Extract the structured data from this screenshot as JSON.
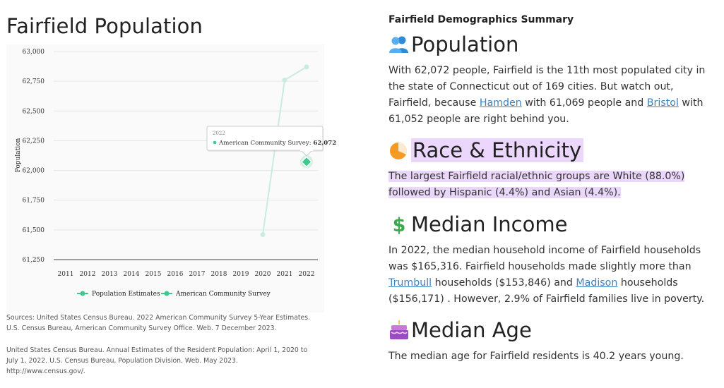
{
  "left": {
    "title": "Fairfield Population",
    "sources": [
      "Sources: United States Census Bureau. 2022 American Community Survey 5-Year Estimates. U.S. Census Bureau, American Community Survey Office. Web. 7 December 2023.",
      "United States Census Bureau. Annual Estimates of the Resident Population: April 1, 2020 to July 1, 2022. U.S. Census Bureau, Population Division. Web. May 2023. http://www.census.gov/."
    ]
  },
  "chart_data": {
    "type": "line",
    "title": "",
    "xlabel": "",
    "ylabel": "Population",
    "x": [
      "2011",
      "2012",
      "2013",
      "2014",
      "2015",
      "2016",
      "2017",
      "2018",
      "2019",
      "2020",
      "2021",
      "2022"
    ],
    "ylim": [
      61250,
      63000
    ],
    "yticks": [
      "63,000",
      "62,750",
      "62,500",
      "62,250",
      "62,000",
      "61,750",
      "61,500",
      "61,250"
    ],
    "series": [
      {
        "name": "Population Estimates",
        "color": "#c9ecdf",
        "points": [
          {
            "x": "2020",
            "y": 61460
          },
          {
            "x": "2021",
            "y": 62760
          },
          {
            "x": "2022",
            "y": 62870
          }
        ]
      },
      {
        "name": "American Community Survey",
        "color": "#3ec98e",
        "points": [
          {
            "x": "2022",
            "y": 62072
          }
        ]
      }
    ],
    "tooltip": {
      "year": "2022",
      "series": "American Community Survey",
      "value": "62,072"
    },
    "legend_position": "bottom"
  },
  "right": {
    "summary_title": "Fairfield Demographics Summary",
    "sections": [
      {
        "heading": "Population",
        "icon": "people-icon",
        "parts": [
          "With 62,072 people, Fairfield is the 11th most populated city in the state of Connecticut out of 169 cities. But watch out, Fairfield, because ",
          "Hamden",
          " with 61,069 people and ",
          "Bristol",
          " with 61,052 people are right behind you."
        ]
      },
      {
        "heading": "Race & Ethnicity",
        "icon": "pie-chart-icon",
        "text": "The largest Fairfield racial/ethnic groups are White (88.0%) followed by Hispanic (4.4%) and Asian (4.4%)."
      },
      {
        "heading": "Median Income",
        "icon": "dollar-icon",
        "parts": [
          "In 2022, the median household income of Fairfield households was $165,316. Fairfield households made slightly more than ",
          "Trumbull",
          " households ($153,846) and ",
          "Madison",
          " households ($156,171) . However, 2.9% of Fairfield families live in poverty."
        ]
      },
      {
        "heading": "Median Age",
        "icon": "birthday-cake-icon",
        "text": "The median age for Fairfield residents is 40.2 years young."
      }
    ]
  },
  "colors": {
    "accent": "#3ec98e",
    "estimate_line": "#c9ecdf",
    "link": "#3b82c4",
    "highlight": "#ead7fb"
  }
}
